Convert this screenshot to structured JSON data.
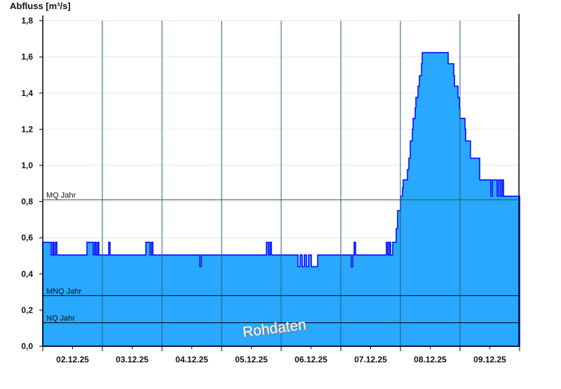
{
  "chart_data": {
    "type": "area",
    "title": "",
    "ylabel": "Abfluss [m³/s]",
    "xlabel": "",
    "ylim": [
      0,
      1.8
    ],
    "yticks": [
      "0,0",
      "0,2",
      "0,4",
      "0,6",
      "0,8",
      "1,0",
      "1,2",
      "1,4",
      "1,6",
      "1,8"
    ],
    "xlim": [
      "02.12.25 00:00",
      "10.12.25 00:00"
    ],
    "xticks": [
      "02.12.25",
      "03.12.25",
      "04.12.25",
      "05.12.25",
      "06.12.25",
      "07.12.25",
      "08.12.25",
      "09.12.25"
    ],
    "grid": true,
    "watermark": "Rohdaten",
    "colors": {
      "fill": "#29a8ff",
      "line": "#0000ff",
      "mq_line": "#1f5f1f",
      "ref_line": "#000000",
      "day_line": "#1f5f7a",
      "grid": "#e6e6e6"
    },
    "reference_lines": [
      {
        "label": "MQ Jahr",
        "value": 0.81
      },
      {
        "label": "MNQ Jahr",
        "value": 0.28
      },
      {
        "label": "NQ Jahr",
        "value": 0.13
      }
    ],
    "series": [
      {
        "step": true,
        "points": [
          [
            "02.12.25 00:00",
            0.575
          ],
          [
            "02.12.25 03:24",
            0.505
          ],
          [
            "02.12.25 04:00",
            0.575
          ],
          [
            "02.12.25 04:30",
            0.505
          ],
          [
            "02.12.25 05:05",
            0.575
          ],
          [
            "02.12.25 05:40",
            0.505
          ],
          [
            "02.12.25 17:47",
            0.575
          ],
          [
            "02.12.25 20:20",
            0.505
          ],
          [
            "02.12.25 20:53",
            0.575
          ],
          [
            "02.12.25 21:28",
            0.505
          ],
          [
            "02.12.25 22:02",
            0.575
          ],
          [
            "02.12.25 22:35",
            0.505
          ],
          [
            "03.12.25 02:32",
            0.575
          ],
          [
            "03.12.25 03:06",
            0.505
          ],
          [
            "03.12.25 17:30",
            0.575
          ],
          [
            "03.12.25 19:12",
            0.505
          ],
          [
            "03.12.25 19:46",
            0.575
          ],
          [
            "03.12.25 20:20",
            0.505
          ],
          [
            "04.12.25 15:15",
            0.44
          ],
          [
            "04.12.25 15:49",
            0.505
          ],
          [
            "05.12.25 18:04",
            0.575
          ],
          [
            "05.12.25 18:55",
            0.505
          ],
          [
            "05.12.25 19:29",
            0.575
          ],
          [
            "05.12.25 20:03",
            0.505
          ],
          [
            "06.12.25 06:46",
            0.44
          ],
          [
            "06.12.25 07:37",
            0.505
          ],
          [
            "06.12.25 08:28",
            0.44
          ],
          [
            "06.12.25 09:19",
            0.505
          ],
          [
            "06.12.25 10:10",
            0.44
          ],
          [
            "06.12.25 11:01",
            0.505
          ],
          [
            "06.12.25 12:08",
            0.44
          ],
          [
            "06.12.25 14:41",
            0.505
          ],
          [
            "07.12.25 04:14",
            0.44
          ],
          [
            "07.12.25 04:48",
            0.505
          ],
          [
            "07.12.25 05:22",
            0.575
          ],
          [
            "07.12.25 05:56",
            0.505
          ],
          [
            "07.12.25 18:21",
            0.575
          ],
          [
            "07.12.25 18:55",
            0.505
          ],
          [
            "07.12.25 19:29",
            0.575
          ],
          [
            "07.12.25 20:03",
            0.505
          ],
          [
            "07.12.25 20:54",
            0.575
          ],
          [
            "07.12.25 22:18",
            0.65
          ],
          [
            "07.12.25 22:52",
            0.75
          ],
          [
            "08.12.25 00:00",
            0.83
          ],
          [
            "08.12.25 00:51",
            0.876
          ],
          [
            "08.12.25 01:08",
            0.92
          ],
          [
            "08.12.25 02:50",
            0.977
          ],
          [
            "08.12.25 03:24",
            1.04
          ],
          [
            "08.12.25 03:58",
            1.135
          ],
          [
            "08.12.25 04:49",
            1.2
          ],
          [
            "08.12.25 05:06",
            1.26
          ],
          [
            "08.12.25 05:57",
            1.318
          ],
          [
            "08.12.25 06:14",
            1.376
          ],
          [
            "08.12.25 07:05",
            1.438
          ],
          [
            "08.12.25 07:39",
            1.496
          ],
          [
            "08.12.25 08:30",
            1.562
          ],
          [
            "08.12.25 08:47",
            1.624
          ],
          [
            "08.12.25 19:14",
            1.562
          ],
          [
            "08.12.25 21:30",
            1.496
          ],
          [
            "08.12.25 21:47",
            1.438
          ],
          [
            "08.12.25 23:12",
            1.376
          ],
          [
            "08.12.25 23:46",
            1.318
          ],
          [
            "09.12.25 00:00",
            1.26
          ],
          [
            "09.12.25 02:00",
            1.2
          ],
          [
            "09.12.25 02:17",
            1.135
          ],
          [
            "09.12.25 04:12",
            1.04
          ],
          [
            "09.12.25 07:55",
            0.92
          ],
          [
            "09.12.25 12:25",
            0.83
          ],
          [
            "09.12.25 12:59",
            0.92
          ],
          [
            "09.12.25 14:58",
            0.83
          ],
          [
            "09.12.25 15:32",
            0.92
          ],
          [
            "09.12.25 16:23",
            0.83
          ],
          [
            "09.12.25 16:57",
            0.92
          ],
          [
            "09.12.25 17:30",
            0.83
          ],
          [
            "10.12.25 00:00",
            0.83
          ]
        ]
      }
    ]
  }
}
